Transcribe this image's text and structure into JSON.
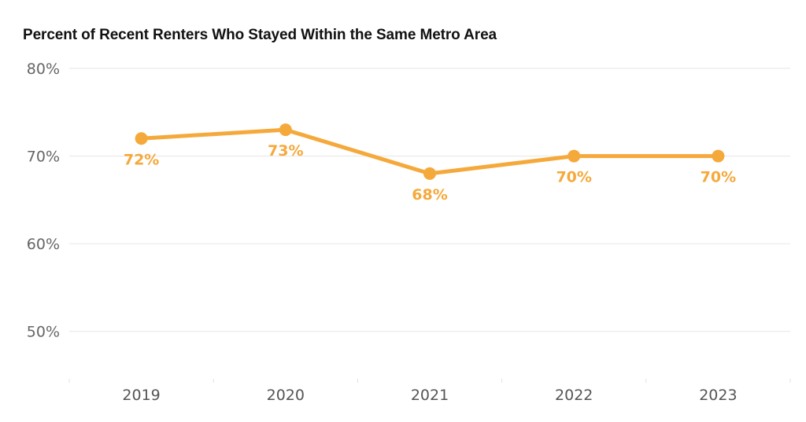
{
  "chart_data": {
    "type": "line",
    "title": "Percent of Recent Renters Who Stayed Within the Same Metro Area",
    "xlabel": "",
    "ylabel": "",
    "categories": [
      "2019",
      "2020",
      "2021",
      "2022",
      "2023"
    ],
    "series": [
      {
        "values": [
          72,
          73,
          68,
          70,
          70
        ],
        "color": "#F5A93B"
      }
    ],
    "data_labels": [
      "72%",
      "73%",
      "68%",
      "70%",
      "70%"
    ],
    "yticks": [
      50,
      60,
      70,
      80
    ],
    "ytick_labels": [
      "50%",
      "60%",
      "70%",
      "80%"
    ],
    "ylim": [
      44.6,
      80
    ],
    "grid": true,
    "legend": "none"
  }
}
